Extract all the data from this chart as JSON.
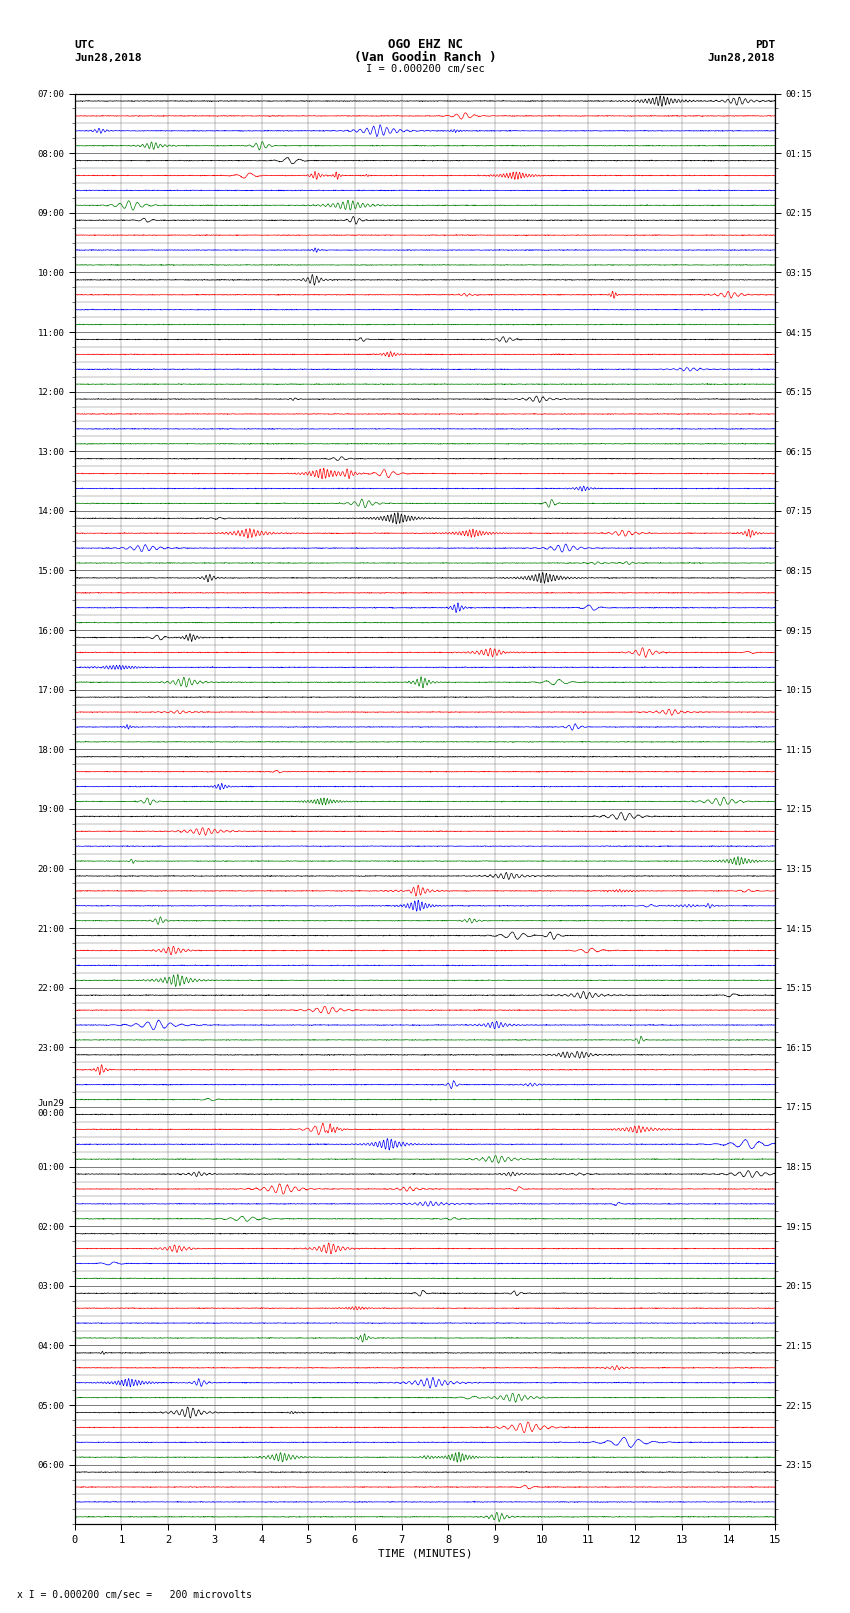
{
  "title_line1": "OGO EHZ NC",
  "title_line2": "(Van Goodin Ranch )",
  "title_line3": "I = 0.000200 cm/sec",
  "left_label_top": "UTC",
  "left_label_date": "Jun28,2018",
  "right_label_top": "PDT",
  "right_label_date": "Jun28,2018",
  "bottom_label": "TIME (MINUTES)",
  "footnote": "x I = 0.000200 cm/sec =   200 microvolts",
  "utc_labels": [
    "07:00",
    "08:00",
    "09:00",
    "10:00",
    "11:00",
    "12:00",
    "13:00",
    "14:00",
    "15:00",
    "16:00",
    "17:00",
    "18:00",
    "19:00",
    "20:00",
    "21:00",
    "22:00",
    "23:00",
    "Jun29\n00:00",
    "01:00",
    "02:00",
    "03:00",
    "04:00",
    "05:00",
    "06:00"
  ],
  "pdt_labels": [
    "00:15",
    "01:15",
    "02:15",
    "03:15",
    "04:15",
    "05:15",
    "06:15",
    "07:15",
    "08:15",
    "09:15",
    "10:15",
    "11:15",
    "12:15",
    "13:15",
    "14:15",
    "15:15",
    "16:15",
    "17:15",
    "18:15",
    "19:15",
    "20:15",
    "21:15",
    "22:15",
    "23:15"
  ],
  "num_rows": 96,
  "rows_per_hour": 4,
  "num_minutes": 15,
  "bg_color": "#ffffff",
  "trace_colors_cycle": [
    "#000000",
    "#ff0000",
    "#0000ff",
    "#008000"
  ],
  "base_noise": 0.012,
  "seed": 12345
}
